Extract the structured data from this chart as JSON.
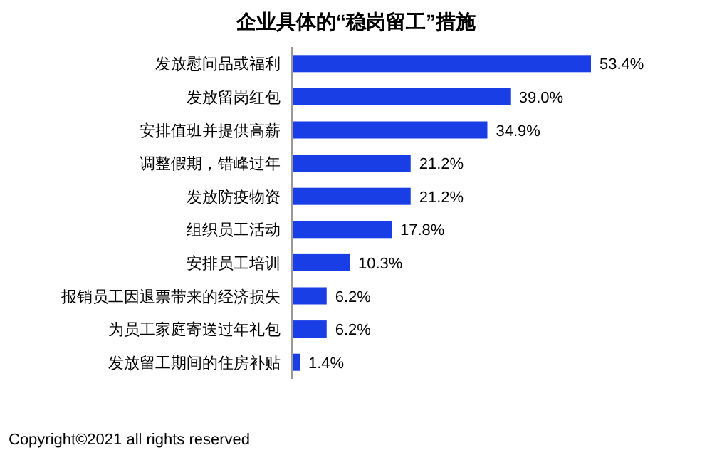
{
  "chart_data": {
    "type": "bar",
    "orientation": "horizontal",
    "title": "企业具体的“稳岗留工”措施",
    "categories": [
      "发放慰问品或福利",
      "发放留岗红包",
      "安排值班并提供高薪",
      "调整假期，错峰过年",
      "发放防疫物资",
      "组织员工活动",
      "安排员工培训",
      "报销员工因退票带来的经济损失",
      "为员工家庭寄送过年礼包",
      "发放留工期间的住房补贴"
    ],
    "values": [
      53.4,
      39.0,
      34.9,
      21.2,
      21.2,
      17.8,
      10.3,
      6.2,
      6.2,
      1.4
    ],
    "value_labels": [
      "53.4%",
      "39.0%",
      "34.9%",
      "21.2%",
      "21.2%",
      "17.8%",
      "10.3%",
      "6.2%",
      "6.2%",
      "1.4%"
    ],
    "color": "#1a3ee6",
    "annotations": [
      "Copyright©2021 all rights reserved"
    ]
  }
}
